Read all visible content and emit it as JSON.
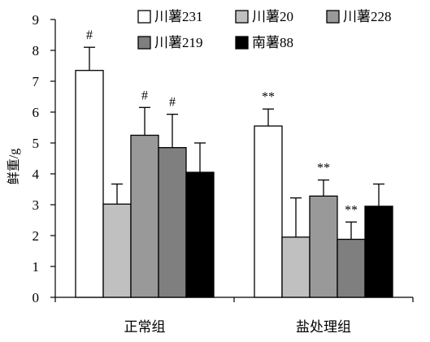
{
  "chart_data": {
    "type": "bar",
    "title": "",
    "xlabel": "",
    "ylabel": "鲜重/g",
    "ylim": [
      0,
      9
    ],
    "yticks": [
      0,
      1,
      2,
      3,
      4,
      5,
      6,
      7,
      8,
      9
    ],
    "grid": false,
    "legend_position": "top-right",
    "categories": [
      "正常组",
      "盐处理组"
    ],
    "series": [
      {
        "name": "川薯231",
        "color": "#ffffff",
        "values": [
          7.35,
          5.55
        ],
        "errors": [
          0.75,
          0.55
        ],
        "markers": [
          "#",
          "**"
        ]
      },
      {
        "name": "川薯20",
        "color": "#c0c0c0",
        "values": [
          3.02,
          1.95
        ],
        "errors": [
          0.65,
          1.27
        ],
        "markers": [
          "",
          ""
        ]
      },
      {
        "name": "川薯228",
        "color": "#999999",
        "values": [
          5.25,
          3.28
        ],
        "errors": [
          0.9,
          0.52
        ],
        "markers": [
          "#",
          "**"
        ]
      },
      {
        "name": "川薯219",
        "color": "#7f7f7f",
        "values": [
          4.85,
          1.88
        ],
        "errors": [
          1.08,
          0.56
        ],
        "markers": [
          "#",
          "**"
        ]
      },
      {
        "name": "南薯88",
        "color": "#000000",
        "values": [
          4.05,
          2.95
        ],
        "errors": [
          0.95,
          0.72
        ],
        "markers": [
          "",
          ""
        ]
      }
    ]
  }
}
